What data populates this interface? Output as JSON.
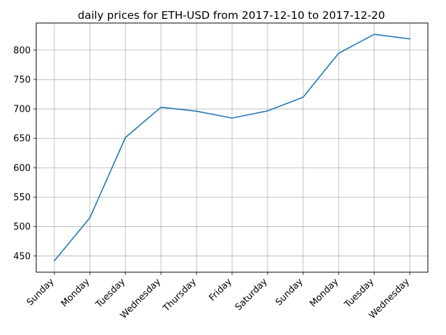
{
  "chart_data": {
    "type": "line",
    "title": "daily prices for ETH-USD from 2017-12-10 to 2017-12-20",
    "xlabel": "",
    "ylabel": "",
    "categories": [
      "Sunday",
      "Monday",
      "Tuesday",
      "Wednesday",
      "Thursday",
      "Friday",
      "Saturday",
      "Sunday",
      "Monday",
      "Tuesday",
      "Wednesday"
    ],
    "series": [
      {
        "values": [
          441.7,
          515.1,
          651.4,
          702.8,
          696.2,
          684.5,
          696.7,
          720.0,
          794.6,
          826.8,
          819.1
        ]
      }
    ],
    "yticks": [
      450,
      500,
      550,
      600,
      650,
      700,
      750,
      800
    ],
    "ylim": [
      422.5,
      846.0
    ],
    "grid": true,
    "line_color": "#1f77b4",
    "grid_color": "#b0b0b0"
  }
}
